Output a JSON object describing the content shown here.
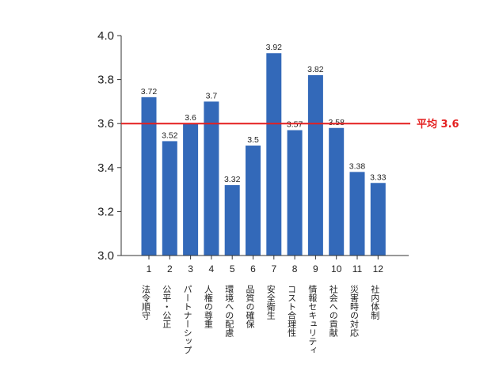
{
  "chart_data": {
    "type": "bar",
    "categories": [
      "1",
      "2",
      "3",
      "4",
      "5",
      "6",
      "7",
      "8",
      "9",
      "10",
      "11",
      "12"
    ],
    "category_names": [
      "法令順守",
      "公平・公正",
      "パートナーシップ",
      "人権の尊重",
      "環境への配慮",
      "品質の確保",
      "安全衛生",
      "コスト合理性",
      "情報セキュリティ",
      "社会への貢献",
      "災害時の対応",
      "社内体制"
    ],
    "values": [
      3.72,
      3.52,
      3.6,
      3.7,
      3.32,
      3.5,
      3.92,
      3.57,
      3.82,
      3.58,
      3.38,
      3.33
    ],
    "value_labels": [
      "3.72",
      "3.52",
      "3.6",
      "3.7",
      "3.32",
      "3.5",
      "3.92",
      "3.57",
      "3.82",
      "3.58",
      "3.38",
      "3.33"
    ],
    "ylim": [
      3.0,
      4.0
    ],
    "yticks": [
      "3.0",
      "3.2",
      "3.4",
      "3.6",
      "3.8",
      "4.0"
    ],
    "reference_line": {
      "value": 3.6,
      "label": "平均 3.6",
      "color": "#e41f1f"
    },
    "bar_color": "#3369b9",
    "grid": false,
    "title": "",
    "xlabel": "",
    "ylabel": ""
  }
}
